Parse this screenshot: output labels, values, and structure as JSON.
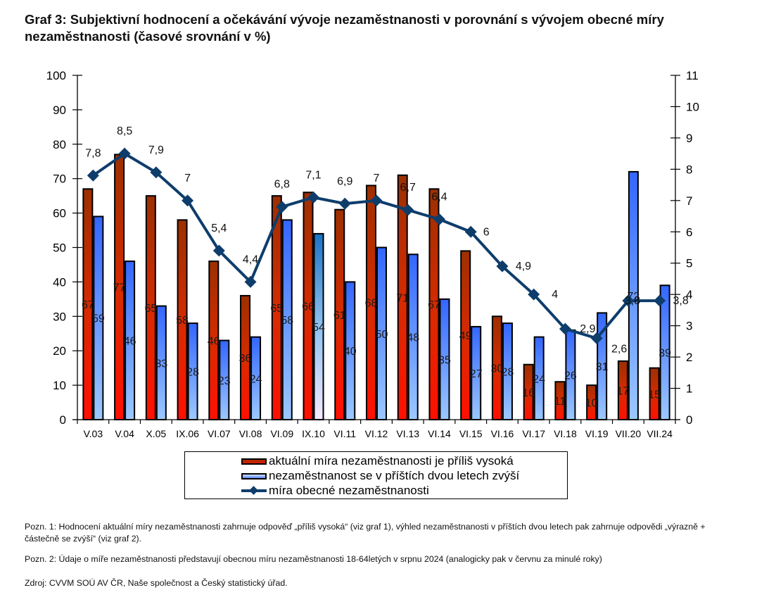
{
  "page": {
    "title": "Graf 3: Subjektivní hodnocení a očekávání vývoje nezaměstnanosti v porovnání s vývojem obecné míry nezaměstnanosti (časové srovnání v %)",
    "notes": [
      "Pozn. 1: Hodnocení aktuální míry nezaměstnanosti zahrnuje odpověď „příliš vysoká“ (viz graf 1), výhled nezaměstnanosti v příštích dvou letech pak zahrnuje odpovědi „výrazně + částečně se zvýší“ (viz graf 2).",
      "Pozn. 2: Údaje o míře nezaměstnanosti představují obecnou míru nezaměstnanosti 18-64letých v srpnu 2024 (analogicky pak v červnu za minulé roky)",
      "Zdroj: CVVM SOÚ AV ČR, Naše společnost a Český statistický úřad."
    ]
  },
  "chart_data": {
    "type": "bar",
    "combo": "bar + line (secondary axis)",
    "title": "Graf 3: Subjektivní hodnocení a očekávání vývoje nezaměstnanosti v porovnání s vývojem obecné míry nezaměstnanosti (časové srovnání v %)",
    "categories": [
      "V.03",
      "V.04",
      "X.05",
      "IX.06",
      "VI.07",
      "VI.08",
      "VI.09",
      "IX.10",
      "VI.11",
      "VI.12",
      "VI.13",
      "VI.14",
      "VI.15",
      "VI.16",
      "VI.17",
      "VI.18",
      "VI.19",
      "VII.20",
      "VII.24"
    ],
    "series": [
      {
        "name": "aktuální míra nezaměstnanosti je příliš vysoká",
        "type": "bar",
        "axis": "left",
        "color": "#c62800",
        "values": [
          67,
          77,
          65,
          58,
          46,
          36,
          65,
          66,
          61,
          68,
          71,
          67,
          49,
          30,
          16,
          11,
          10,
          17,
          15
        ]
      },
      {
        "name": "nezaměstnanost se v příštích dvou letech zvýší",
        "type": "bar",
        "axis": "left",
        "color": "#4a7dff",
        "values": [
          59,
          46,
          33,
          28,
          23,
          24,
          58,
          54,
          40,
          50,
          48,
          35,
          27,
          28,
          24,
          26,
          31,
          72,
          39
        ]
      },
      {
        "name": "míra obecné nezaměstnanosti",
        "type": "line",
        "axis": "right",
        "color": "#0e3d6b",
        "marker": "diamond",
        "values": [
          7.8,
          8.5,
          7.9,
          7.0,
          5.4,
          4.4,
          6.8,
          7.1,
          6.9,
          7.0,
          6.7,
          6.4,
          6.0,
          4.9,
          4.0,
          2.9,
          2.6,
          3.8,
          3.8
        ],
        "labels": [
          "7,8",
          "8,5",
          "7,9",
          "7",
          "5,4",
          "4,4",
          "6,8",
          "7,1",
          "6,9",
          "7",
          "6,7",
          "6,4",
          "6",
          "4,9",
          "4",
          "2,9",
          "2,6",
          "3,8",
          "3,8"
        ]
      }
    ],
    "y_left": {
      "range": [
        0,
        100
      ],
      "ticks": [
        "0",
        "10",
        "20",
        "30",
        "40",
        "50",
        "60",
        "70",
        "80",
        "90",
        "100"
      ]
    },
    "y_right": {
      "range": [
        0,
        11
      ],
      "ticks": [
        "0",
        "1",
        "2",
        "3",
        "4",
        "5",
        "6",
        "7",
        "8",
        "9",
        "10",
        "11"
      ]
    },
    "xlabel": "",
    "ylabel": "",
    "grid": false,
    "legend_position": "bottom"
  }
}
